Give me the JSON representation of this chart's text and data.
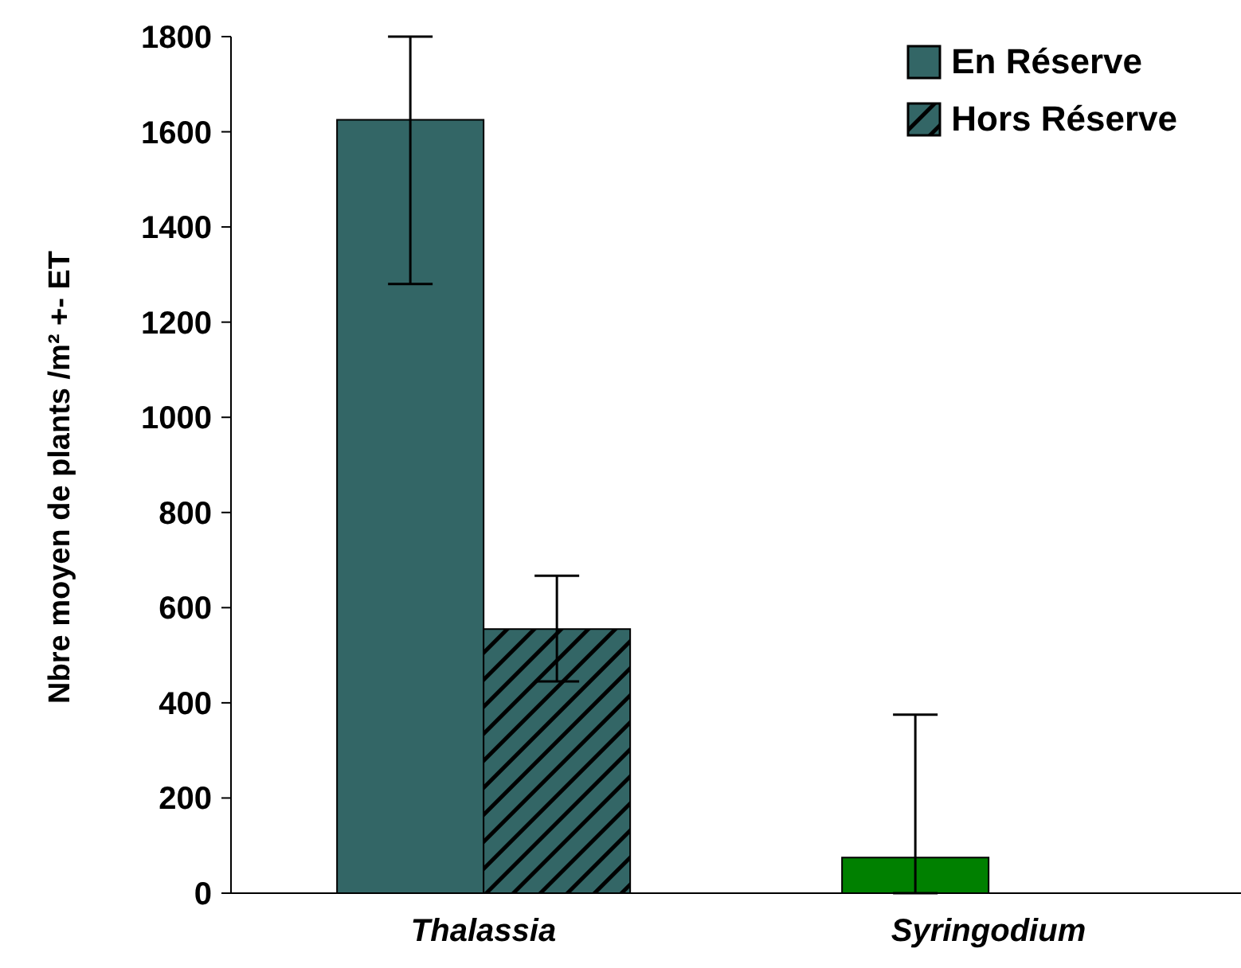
{
  "chart_data": {
    "type": "bar",
    "ylabel": "Nbre moyen de plants /m² +- ET",
    "categories": [
      "Thalassia",
      "Syringodium"
    ],
    "series": [
      {
        "name": "En Réserve",
        "color": "#336666",
        "colors": [
          "#336666",
          "#008000"
        ],
        "values": [
          1625,
          75
        ],
        "errors": [
          [
            1280,
            1800
          ],
          [
            0,
            375
          ]
        ]
      },
      {
        "name": "Hors Réserve",
        "color": "#336666",
        "values": [
          555,
          null
        ],
        "errors": [
          [
            445,
            667
          ],
          null
        ]
      }
    ],
    "ylim": [
      0,
      1800
    ],
    "yticks": [
      0,
      200,
      400,
      600,
      800,
      1000,
      1200,
      1400,
      1600,
      1800
    ],
    "grid": false,
    "legend": "top right"
  }
}
